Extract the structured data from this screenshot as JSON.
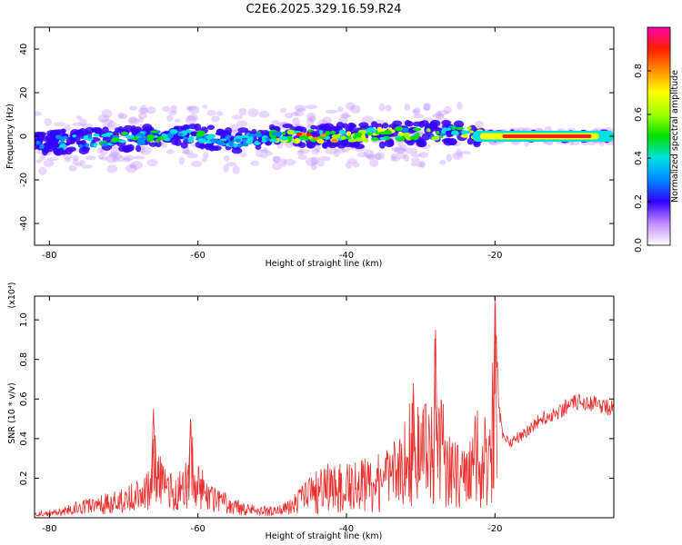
{
  "chart_data": [
    {
      "type": "heatmap",
      "title": "C2E6.2025.329.16.59.R24",
      "xlabel": "Height of straight line (km)",
      "ylabel": "Frequency (Hz)",
      "xlim": [
        -82,
        -4
      ],
      "ylim": [
        -50,
        50
      ],
      "xticks": [
        -80,
        -60,
        -40,
        -20
      ],
      "yticks": [
        -40,
        -20,
        0,
        20,
        40
      ],
      "ridge": {
        "description_values": "frequency centre of the signal band (Hz) vs height (km)",
        "x": [
          -82,
          -75,
          -70,
          -65,
          -60,
          -55,
          -50,
          -45,
          -40,
          -35,
          -30,
          -25,
          -22,
          -20,
          -15,
          -10,
          -5
        ],
        "center": [
          -3,
          -2,
          -1,
          0,
          0,
          -2,
          0,
          0,
          0,
          1,
          1,
          2,
          1,
          0,
          0,
          0,
          0
        ],
        "peak_amplitude": [
          0.3,
          0.35,
          0.4,
          0.45,
          0.4,
          0.35,
          0.45,
          0.85,
          0.6,
          0.7,
          0.55,
          0.5,
          0.8,
          0.85,
          0.9,
          0.9,
          0.6
        ]
      },
      "colorbar": {
        "label": "Normalized spectral amplitude",
        "range": [
          0,
          1
        ],
        "ticks": [
          "0.0",
          "0.2",
          "0.4",
          "0.6",
          "0.8"
        ],
        "tick_values": [
          0,
          0.2,
          0.4,
          0.6,
          0.8
        ]
      }
    },
    {
      "type": "line",
      "title": "",
      "xlabel": "Height of straight line (km)",
      "ylabel": "SNR (10 * v/v)",
      "scale_label": "(x10⁴)",
      "xlim": [
        -82,
        -4
      ],
      "ylim": [
        0,
        1.12
      ],
      "xticks": [
        -80,
        -60,
        -40,
        -20
      ],
      "yticks": [
        "0.2",
        "0.4",
        "0.6",
        "0.8",
        "1.0"
      ],
      "ytick_values": [
        0.2,
        0.4,
        0.6,
        0.8,
        1.0
      ],
      "series": [
        {
          "name": "SNR",
          "color": "#e8312f",
          "x": [
            -82,
            -80,
            -78,
            -76,
            -74,
            -72,
            -70,
            -68,
            -66.5,
            -66,
            -65,
            -63,
            -61.5,
            -61,
            -60,
            -58,
            -56,
            -54,
            -52,
            -50,
            -48,
            -46,
            -44,
            -42,
            -40,
            -38,
            -36,
            -34,
            -32,
            -31,
            -30,
            -29,
            -28,
            -27.5,
            -27,
            -26,
            -24,
            -23,
            -22,
            -21,
            -20.5,
            -20,
            -19.5,
            -19,
            -18,
            -16,
            -14,
            -12,
            -10,
            -8,
            -6,
            -4
          ],
          "values": [
            0.03,
            0.04,
            0.06,
            0.09,
            0.1,
            0.13,
            0.15,
            0.2,
            0.28,
            0.55,
            0.3,
            0.2,
            0.3,
            0.5,
            0.28,
            0.18,
            0.12,
            0.08,
            0.06,
            0.06,
            0.08,
            0.16,
            0.25,
            0.3,
            0.28,
            0.3,
            0.33,
            0.38,
            0.55,
            0.68,
            0.55,
            0.6,
            0.95,
            0.55,
            0.7,
            0.4,
            0.35,
            0.48,
            0.62,
            0.5,
            0.7,
            1.12,
            0.6,
            0.45,
            0.4,
            0.45,
            0.52,
            0.55,
            0.6,
            0.62,
            0.6,
            0.58
          ]
        }
      ]
    }
  ]
}
